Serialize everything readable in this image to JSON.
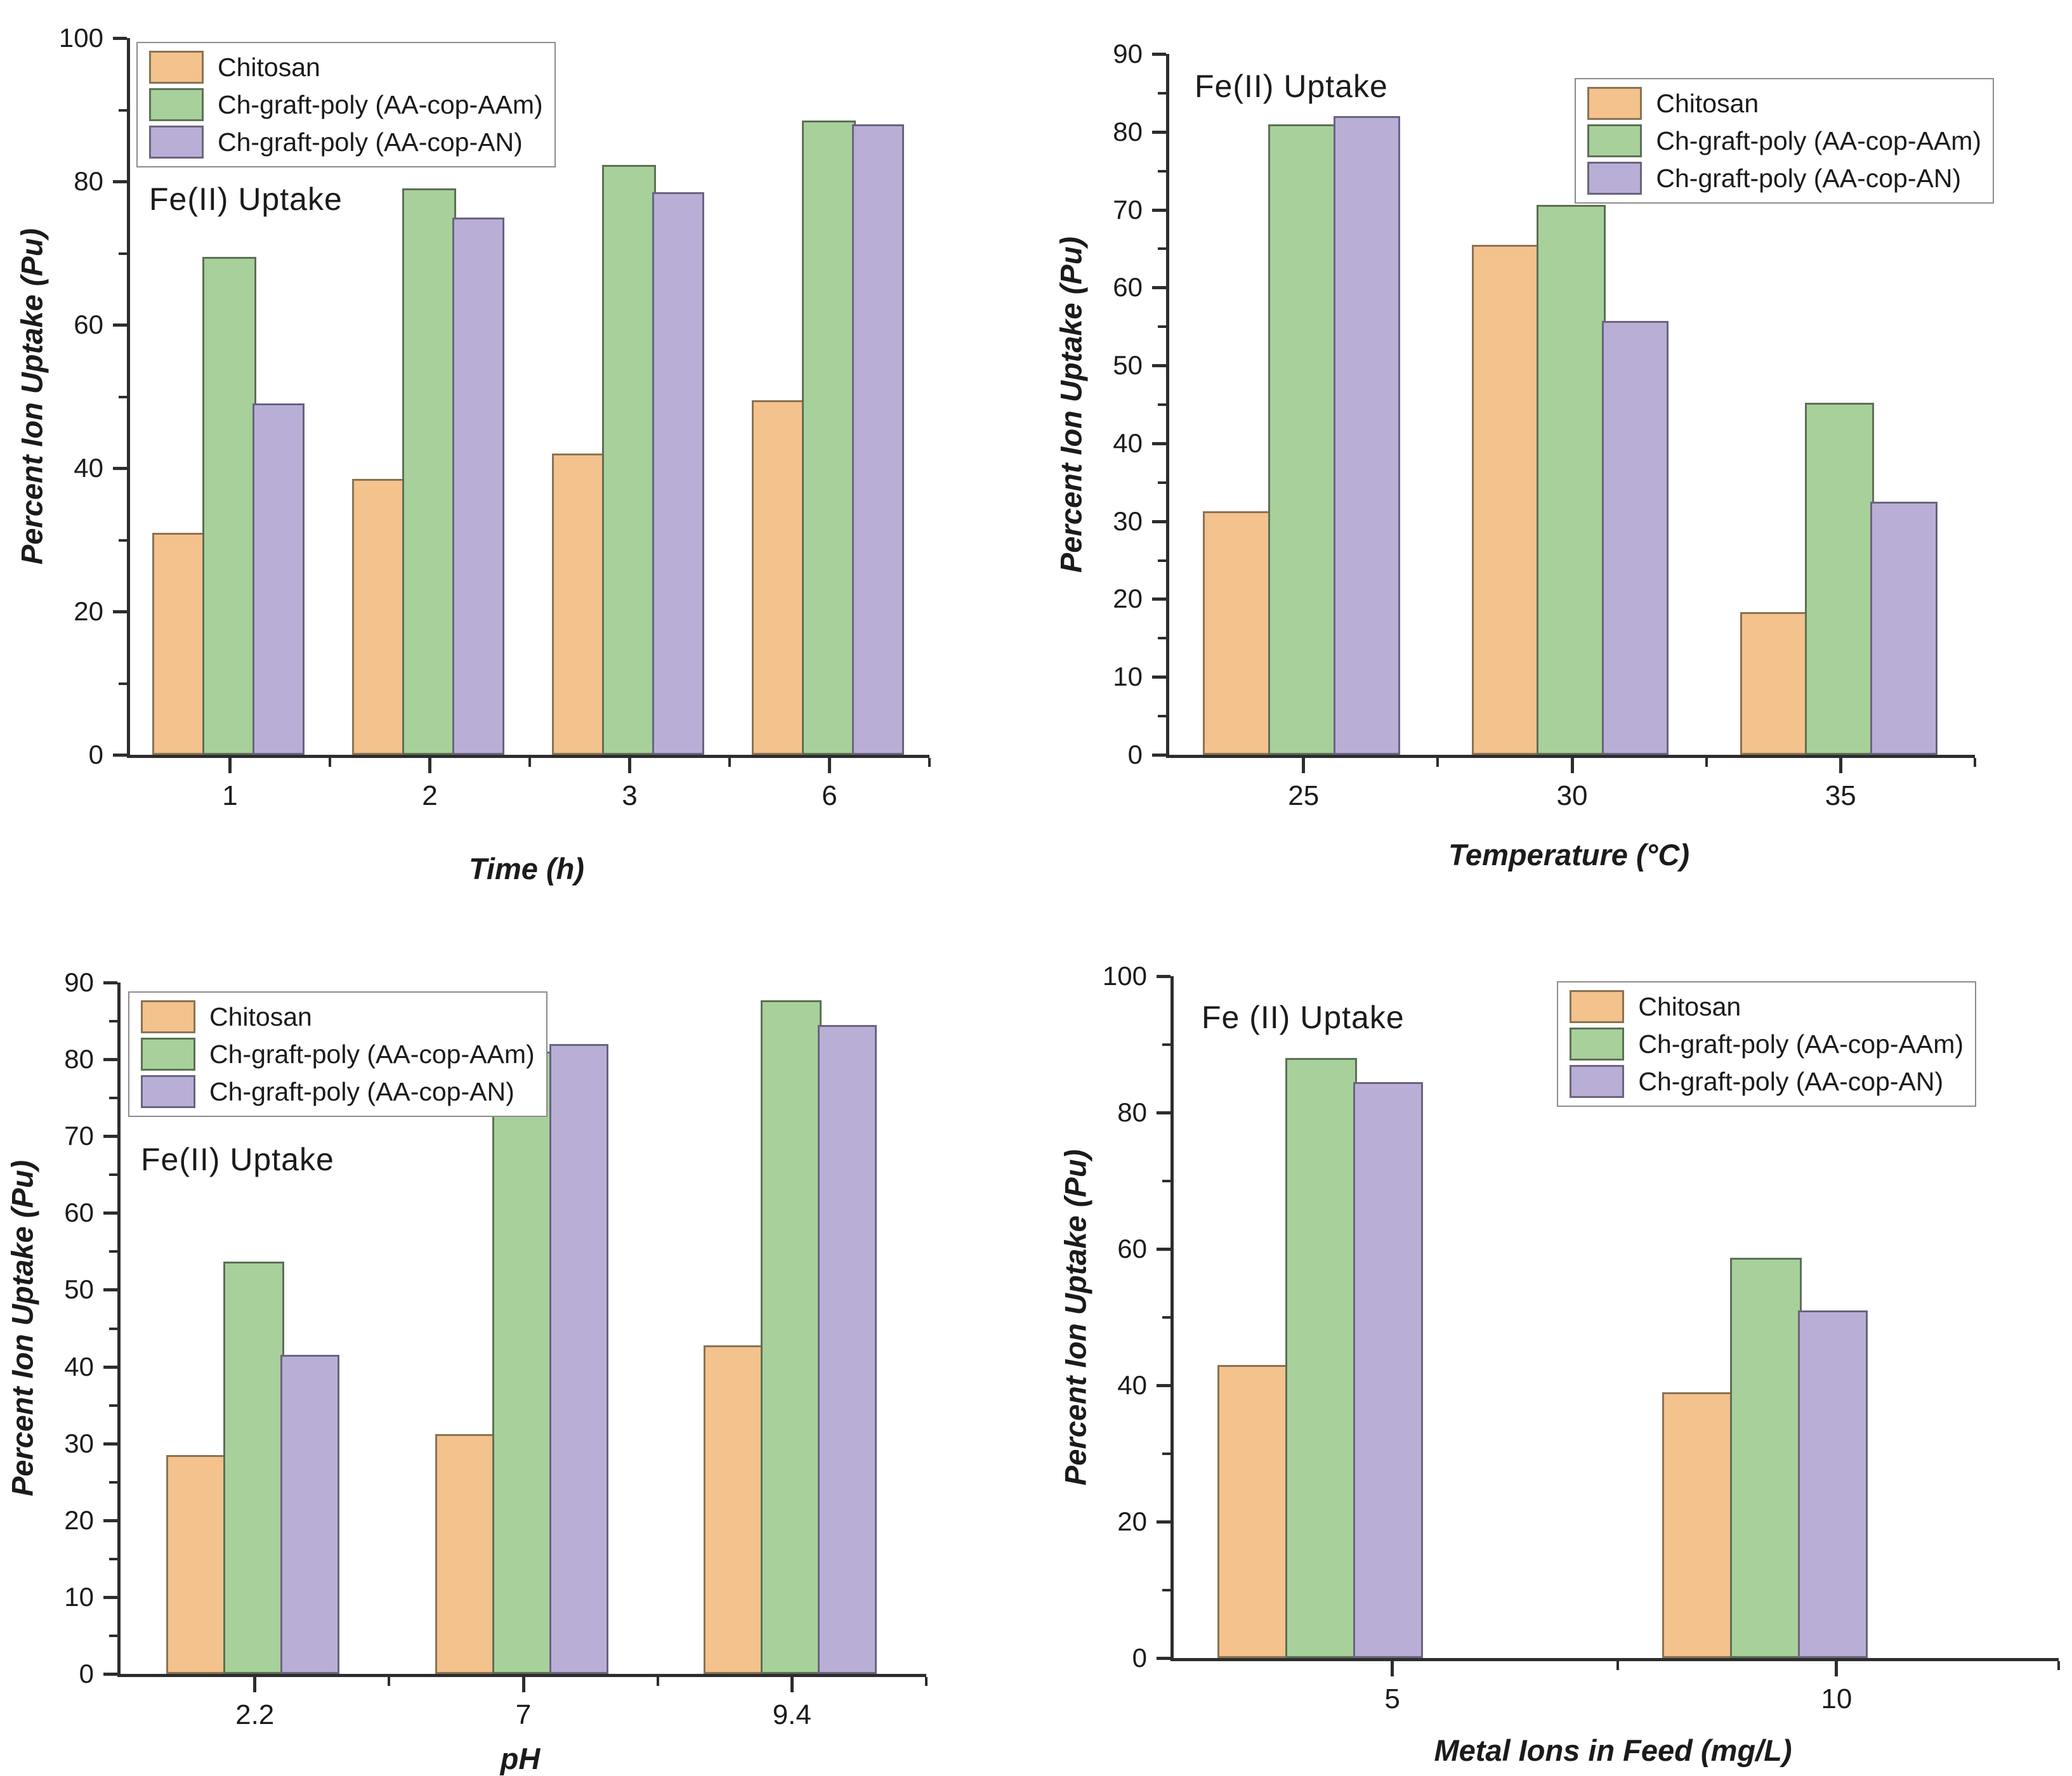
{
  "figure": {
    "background": "#ffffff",
    "description_title": "Fe(II) Uptake"
  },
  "colors": {
    "series_fills": [
      "#F4C28C",
      "#A8D09B",
      "#B9AFD6"
    ],
    "series_borders": [
      "#8A7354",
      "#5C7055",
      "#6A6480"
    ],
    "axis": "#2d2d2d",
    "text": "#1b1b1b",
    "legend_border": "#8c8c8c",
    "legend_background": "#ffffff"
  },
  "chart_data": [
    {
      "type": "bar",
      "title": "Fe(II) Uptake",
      "xlabel": "Time (h)",
      "ylabel": "Percent Ion Uptake (Pu)",
      "ylim": [
        0,
        100
      ],
      "yticks": [
        0,
        20,
        40,
        60,
        80,
        100
      ],
      "yminor_step": 10,
      "grid": false,
      "legend_position": "top-left",
      "categories": [
        "1",
        "2",
        "3",
        "6"
      ],
      "series": [
        {
          "name": "Chitosan",
          "values": [
            31,
            38.5,
            42,
            49.5
          ]
        },
        {
          "name": "Ch-graft-poly (AA-cop-AAm)",
          "values": [
            69.5,
            79,
            82.3,
            88.5
          ]
        },
        {
          "name": "Ch-graft-poly (AA-cop-AN)",
          "values": [
            49,
            75,
            78.5,
            88
          ]
        }
      ]
    },
    {
      "type": "bar",
      "title": "Fe(II) Uptake",
      "xlabel": "Temperature (°C)",
      "ylabel": "Percent Ion Uptake (Pu)",
      "ylim": [
        0,
        90
      ],
      "yticks": [
        0,
        10,
        20,
        30,
        40,
        50,
        60,
        70,
        80,
        90
      ],
      "yminor_step": 5,
      "grid": false,
      "legend_position": "top-right",
      "categories": [
        "25",
        "30",
        "35"
      ],
      "series": [
        {
          "name": "Chitosan",
          "values": [
            31.3,
            65.5,
            18.3
          ]
        },
        {
          "name": "Ch-graft-poly (AA-cop-AAm)",
          "values": [
            81,
            70.6,
            45.2
          ]
        },
        {
          "name": "Ch-graft-poly (AA-cop-AN)",
          "values": [
            82,
            55.7,
            32.5
          ]
        }
      ]
    },
    {
      "type": "bar",
      "title": "Fe(II) Uptake",
      "xlabel": "pH",
      "ylabel": "Percent Ion Uptake (Pu)",
      "ylim": [
        0,
        90
      ],
      "yticks": [
        0,
        10,
        20,
        30,
        40,
        50,
        60,
        70,
        80,
        90
      ],
      "yminor_step": 5,
      "grid": false,
      "legend_position": "top-left",
      "categories": [
        "2.2",
        "7",
        "9.4"
      ],
      "series": [
        {
          "name": "Chitosan",
          "values": [
            28.5,
            31.2,
            42.8
          ]
        },
        {
          "name": "Ch-graft-poly (AA-cop-AAm)",
          "values": [
            53.7,
            81,
            87.7
          ]
        },
        {
          "name": "Ch-graft-poly (AA-cop-AN)",
          "values": [
            41.5,
            82,
            84.5
          ]
        }
      ]
    },
    {
      "type": "bar",
      "title": "Fe (II) Uptake",
      "xlabel": "Metal Ions in Feed (mg/L)",
      "ylabel": "Percent Ion Uptake (Pu)",
      "ylim": [
        0,
        100
      ],
      "yticks": [
        0,
        20,
        40,
        60,
        80,
        100
      ],
      "yminor_step": 10,
      "grid": false,
      "legend_position": "top-right",
      "categories": [
        "5",
        "10"
      ],
      "series": [
        {
          "name": "Chitosan",
          "values": [
            43,
            39
          ]
        },
        {
          "name": "Ch-graft-poly (AA-cop-AAm)",
          "values": [
            88,
            58.7
          ]
        },
        {
          "name": "Ch-graft-poly (AA-cop-AN)",
          "values": [
            84.5,
            51
          ]
        }
      ]
    }
  ]
}
